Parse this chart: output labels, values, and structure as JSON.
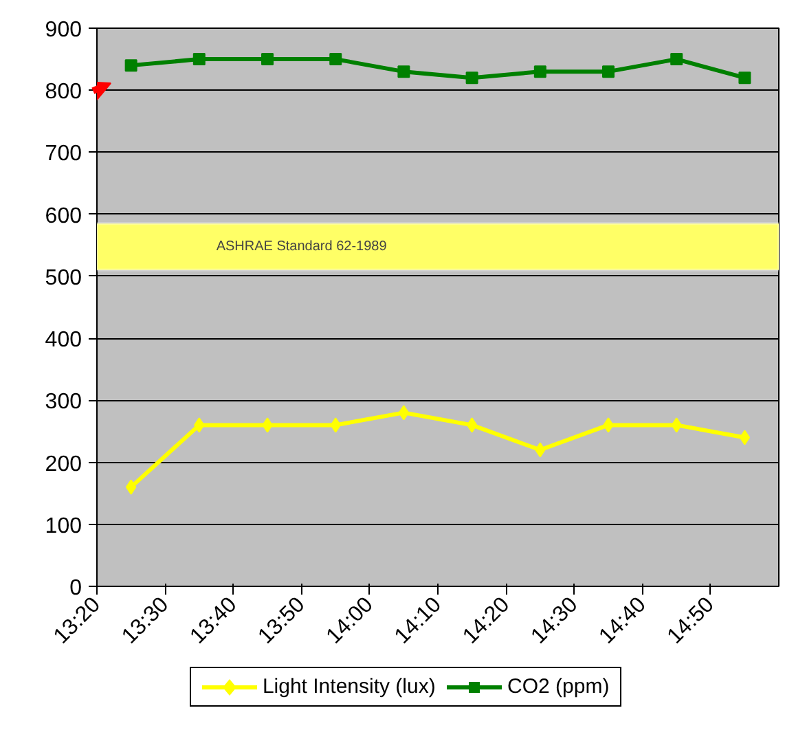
{
  "chart_data": {
    "type": "line",
    "x": [
      13.4167,
      13.5833,
      13.75,
      13.9167,
      14.0833,
      14.25,
      14.4167,
      14.5833,
      14.75,
      14.9167
    ],
    "series": [
      {
        "name": "Light Intensity (lux)",
        "color": "#ffff00",
        "marker": "diamond",
        "values": [
          160,
          260,
          260,
          260,
          280,
          260,
          220,
          260,
          260,
          240
        ]
      },
      {
        "name": "CO2 (ppm)",
        "color": "#008000",
        "marker": "square",
        "values": [
          840,
          850,
          850,
          850,
          830,
          820,
          830,
          830,
          850,
          820
        ]
      }
    ],
    "xlim": [
      13.3333,
      15.0
    ],
    "xticks": [
      {
        "value": 13.3333,
        "label": "13:20"
      },
      {
        "value": 13.5,
        "label": "13:30"
      },
      {
        "value": 13.6667,
        "label": "13:40"
      },
      {
        "value": 13.8333,
        "label": "13:50"
      },
      {
        "value": 14.0,
        "label": "14:00"
      },
      {
        "value": 14.1667,
        "label": "14:10"
      },
      {
        "value": 14.3333,
        "label": "14:20"
      },
      {
        "value": 14.5,
        "label": "14:30"
      },
      {
        "value": 14.6667,
        "label": "14:40"
      },
      {
        "value": 14.8333,
        "label": "14:50"
      }
    ],
    "ylim": [
      0,
      900
    ],
    "yticks": [
      0,
      100,
      200,
      300,
      400,
      500,
      600,
      700,
      800,
      900
    ],
    "grid": "y",
    "legend": "bottom",
    "bands": [
      {
        "axis": "y",
        "from": 510,
        "to": 585,
        "label": "ASHRAE Standard 62-1989",
        "color": "#ffff66"
      }
    ]
  }
}
